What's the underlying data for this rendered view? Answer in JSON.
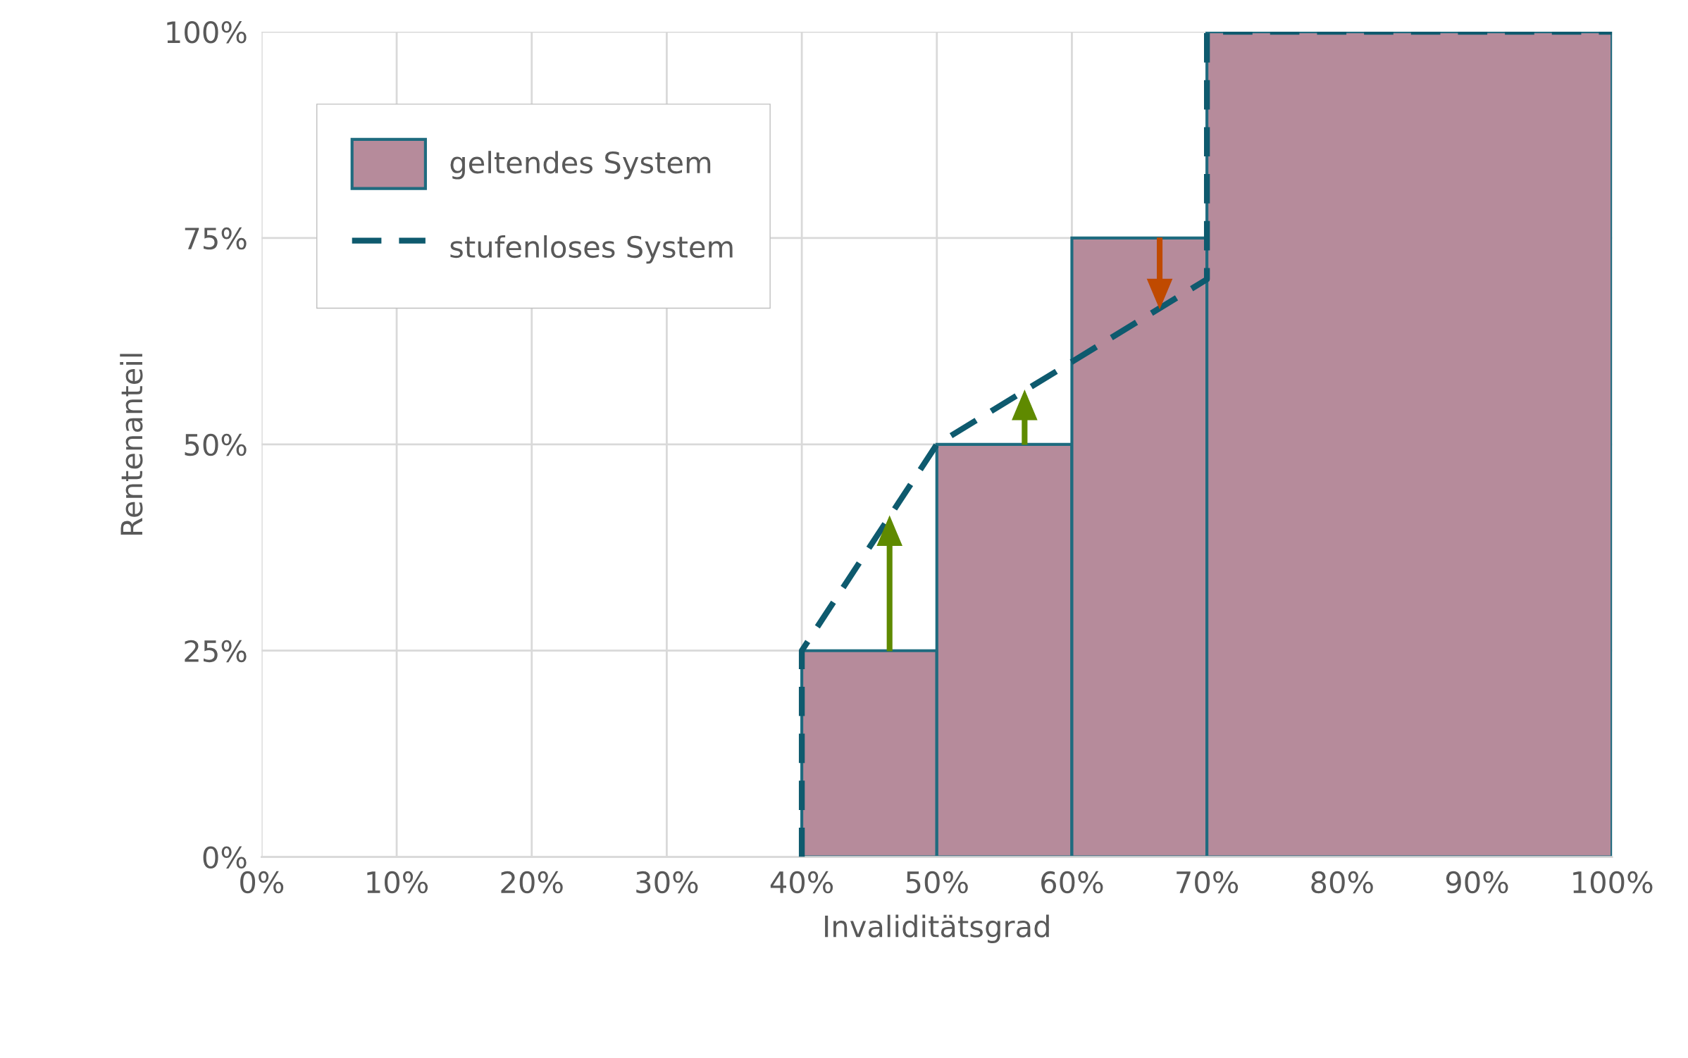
{
  "chart_data": {
    "type": "histogram",
    "xlabel": "Invaliditätsgrad",
    "ylabel": "Rentenanteil",
    "series": [
      {
        "name": "geltendes System",
        "bins": [
          40,
          50,
          60,
          70,
          100
        ],
        "values": [
          25,
          50,
          75,
          100
        ],
        "color": "#b68b9b"
      },
      {
        "name": "stufenloses System",
        "type": "line",
        "x": [
          40,
          40,
          50,
          70,
          70,
          100
        ],
        "values": [
          0,
          25,
          50,
          70,
          100,
          100
        ],
        "color": "#0e5a6e",
        "line_style": "dashed"
      }
    ],
    "xlim": [
      0,
      100
    ],
    "ylim": [
      0,
      100
    ],
    "xticks": [
      {
        "value": 0,
        "label": "0%"
      },
      {
        "value": 10,
        "label": "10%"
      },
      {
        "value": 20,
        "label": "20%"
      },
      {
        "value": 30,
        "label": "30%"
      },
      {
        "value": 40,
        "label": "40%"
      },
      {
        "value": 50,
        "label": "50%"
      },
      {
        "value": 60,
        "label": "60%"
      },
      {
        "value": 70,
        "label": "70%"
      },
      {
        "value": 80,
        "label": "80%"
      },
      {
        "value": 90,
        "label": "90%"
      },
      {
        "value": 100,
        "label": "100%"
      }
    ],
    "yticks": [
      {
        "value": 0,
        "label": "0%"
      },
      {
        "value": 25,
        "label": "25%"
      },
      {
        "value": 50,
        "label": "50%"
      },
      {
        "value": 75,
        "label": "75%"
      },
      {
        "value": 100,
        "label": "100%"
      }
    ],
    "grid": true,
    "legend": "top left"
  }
}
